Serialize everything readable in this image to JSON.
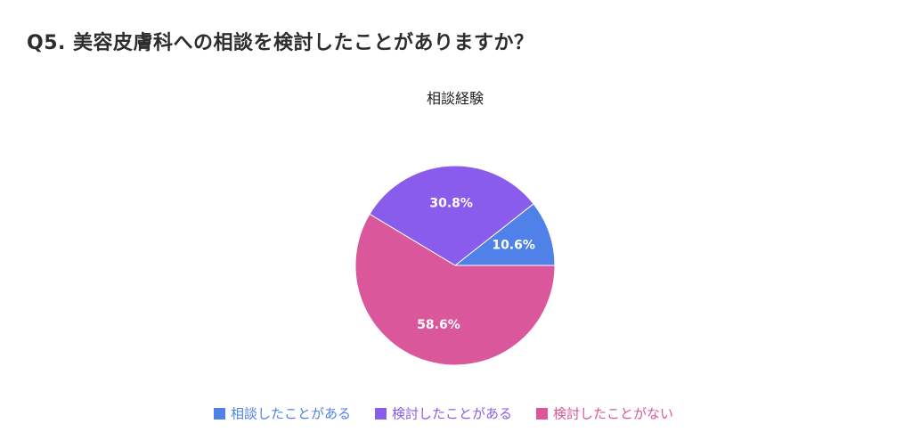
{
  "page": {
    "title": "Q5. 美容皮膚科への相談を検討したことがありますか？"
  },
  "chart_data": {
    "type": "pie",
    "title": "相談経験",
    "categories": [
      "相談したことがある",
      "検討したことがある",
      "検討したことがない"
    ],
    "values": [
      10.6,
      30.8,
      58.6
    ],
    "labels": [
      "10.6%",
      "30.8%",
      "58.6%"
    ],
    "colors": [
      "#5081E8",
      "#8A5CEC",
      "#D9579A"
    ],
    "legend_position": "bottom",
    "start": "3 o'clock",
    "direction": "counterclockwise"
  }
}
